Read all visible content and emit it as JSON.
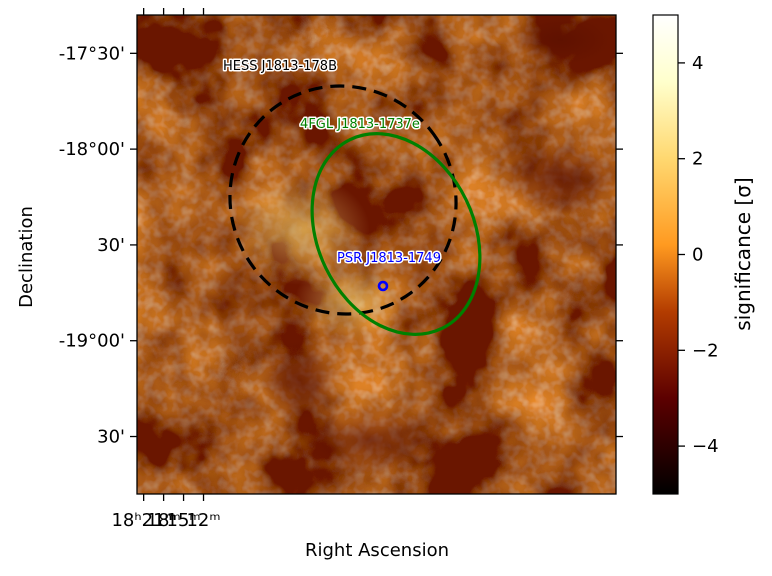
{
  "chart_data": {
    "type": "heatmap",
    "title": "",
    "xlabel": "Right Ascension",
    "ylabel": "Declination",
    "colorbar_label": "significance [σ]",
    "colorbar_range": [
      -5,
      5
    ],
    "colorbar_ticks": [
      4,
      2,
      0,
      -2,
      -4
    ],
    "colorbar_tick_labels": [
      "4",
      "2",
      "0",
      "−2",
      "−4"
    ],
    "colormap": [
      "#000000",
      "#5c0000",
      "#b33c00",
      "#ff9a20",
      "#ffd870",
      "#ffffcc",
      "#ffffff"
    ],
    "ra_range_min": [
      1282,
      1210
    ],
    "x_ticks": [
      {
        "ra_min": 1281,
        "label": "18ʰ21ᵐ"
      },
      {
        "ra_min": 1278,
        "label": "18ᵐ"
      },
      {
        "ra_min": 1275,
        "label": "15ᵐ"
      },
      {
        "ra_min": 1272,
        "label": "12ᵐ"
      }
    ],
    "dec_range_deg": [
      -19.8,
      -17.3
    ],
    "y_ticks": [
      {
        "dec": -17.5,
        "label": "-17°30'"
      },
      {
        "dec": -18.0,
        "label": "-18°00'"
      },
      {
        "dec": -18.5,
        "label": "30'"
      },
      {
        "dec": -19.0,
        "label": "-19°00'"
      },
      {
        "dec": -19.5,
        "label": "30'"
      }
    ],
    "annotations": [
      {
        "label": "HESS J1813-178B",
        "color": "#000000"
      },
      {
        "label": "4FGL J1813-1737e",
        "color": "#008000"
      },
      {
        "label": "PSR J1813-1749",
        "color": "#0000ff"
      }
    ],
    "regions": [
      {
        "name": "HESS J1813-178B",
        "shape": "ellipse",
        "style": "dashed",
        "color": "#000000"
      },
      {
        "name": "4FGL J1813-1737e",
        "shape": "ellipse",
        "style": "solid",
        "color": "#008000"
      },
      {
        "name": "PSR J1813-1749",
        "shape": "marker",
        "color": "#0000ff"
      }
    ]
  }
}
